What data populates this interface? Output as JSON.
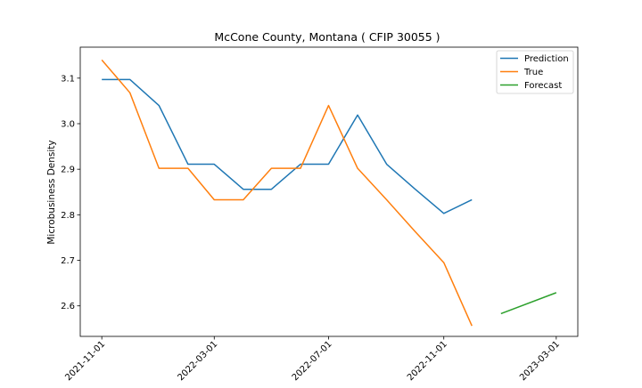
{
  "chart_data": {
    "type": "line",
    "title": "McCone County, Montana ( CFIP 30055 )",
    "xlabel": "",
    "ylabel": "Microbusiness Density",
    "xlim": [
      "2021-10-09",
      "2023-03-24"
    ],
    "ylim": [
      2.533,
      3.168
    ],
    "x_ticks": [
      "2021-11-01",
      "2022-03-01",
      "2022-07-01",
      "2022-11-01",
      "2023-03-01"
    ],
    "y_ticks": [
      2.6,
      2.7,
      2.8,
      2.9,
      3.0,
      3.1
    ],
    "y_tick_labels": [
      "2.6",
      "2.7",
      "2.8",
      "2.9",
      "3.0",
      "3.1"
    ],
    "grid": false,
    "legend_position": "top-right",
    "series": [
      {
        "name": "Prediction",
        "color": "#1f77b4",
        "x": [
          "2021-11-01",
          "2021-12-01",
          "2022-01-01",
          "2022-02-01",
          "2022-03-01",
          "2022-04-01",
          "2022-05-01",
          "2022-06-01",
          "2022-07-01",
          "2022-08-01",
          "2022-09-01",
          "2022-10-01",
          "2022-11-01",
          "2022-12-01"
        ],
        "y": [
          3.097,
          3.097,
          3.04,
          2.911,
          2.911,
          2.856,
          2.856,
          2.911,
          2.911,
          3.019,
          2.911,
          2.857,
          2.803,
          2.833
        ]
      },
      {
        "name": "True",
        "color": "#ff7f0e",
        "x": [
          "2021-11-01",
          "2021-12-01",
          "2022-01-01",
          "2022-02-01",
          "2022-03-01",
          "2022-04-01",
          "2022-05-01",
          "2022-06-01",
          "2022-07-01",
          "2022-08-01",
          "2022-09-01",
          "2022-10-01",
          "2022-11-01",
          "2022-12-01"
        ],
        "y": [
          3.14,
          3.068,
          2.902,
          2.902,
          2.833,
          2.833,
          2.902,
          2.902,
          3.04,
          2.902,
          2.833,
          2.764,
          2.695,
          2.556
        ]
      },
      {
        "name": "Forecast",
        "color": "#2ca02c",
        "x": [
          "2023-01-01",
          "2023-03-01"
        ],
        "y": [
          2.583,
          2.629
        ]
      }
    ]
  }
}
